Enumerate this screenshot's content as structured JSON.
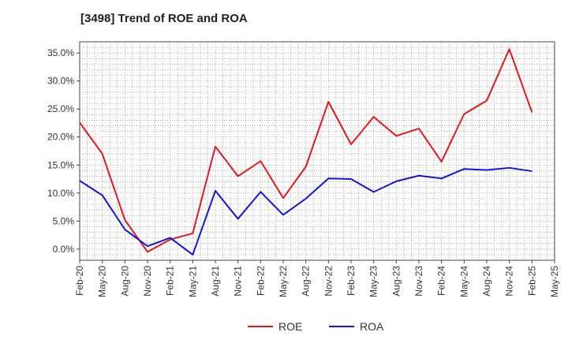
{
  "chart_data": {
    "type": "line",
    "title": "[3498]  Trend of ROE and ROA",
    "xlabel": "",
    "ylabel": "",
    "ylim": [
      -2.0,
      37.0
    ],
    "y_ticks": [
      "0.0%",
      "5.0%",
      "10.0%",
      "15.0%",
      "20.0%",
      "25.0%",
      "30.0%",
      "35.0%"
    ],
    "y_tick_values": [
      0,
      5,
      10,
      15,
      20,
      25,
      30,
      35
    ],
    "x_ticks": [
      "Feb-20",
      "May-20",
      "Aug-20",
      "Nov-20",
      "Feb-21",
      "May-21",
      "Aug-21",
      "Nov-21",
      "Feb-22",
      "May-22",
      "Aug-22",
      "Nov-22",
      "Feb-23",
      "May-23",
      "Aug-23",
      "Nov-23",
      "Feb-24",
      "May-24",
      "Aug-24",
      "Nov-24",
      "Feb-25",
      "May-25"
    ],
    "grid": true,
    "legend_position": "bottom-center",
    "series": [
      {
        "name": "ROE",
        "color": "#e8171b",
        "x": [
          "Feb-20",
          "May-20",
          "Aug-20",
          "Nov-20",
          "Feb-21",
          "May-21",
          "Aug-21",
          "Nov-21",
          "Feb-22",
          "May-22",
          "Aug-22",
          "Nov-22",
          "Feb-23",
          "May-23",
          "Aug-23",
          "Nov-23",
          "Feb-24",
          "May-24",
          "Aug-24",
          "Nov-24",
          "Feb-25"
        ],
        "values": [
          22.6,
          17.0,
          5.2,
          -0.5,
          1.7,
          2.8,
          18.3,
          13.0,
          15.7,
          9.1,
          14.7,
          26.3,
          18.7,
          23.6,
          20.2,
          21.5,
          15.6,
          24.1,
          26.5,
          35.7,
          24.4
        ]
      },
      {
        "name": "ROA",
        "color": "#1414e0",
        "x": [
          "Feb-20",
          "May-20",
          "Aug-20",
          "Nov-20",
          "Feb-21",
          "May-21",
          "Aug-21",
          "Nov-21",
          "Feb-22",
          "May-22",
          "Aug-22",
          "Nov-22",
          "Feb-23",
          "May-23",
          "Aug-23",
          "Nov-23",
          "Feb-24",
          "May-24",
          "Aug-24",
          "Nov-24",
          "Feb-25"
        ],
        "values": [
          12.2,
          9.6,
          3.5,
          0.5,
          2.0,
          -1.0,
          10.4,
          5.4,
          10.2,
          6.1,
          9.0,
          12.6,
          12.5,
          10.2,
          12.1,
          13.1,
          12.6,
          14.3,
          14.1,
          14.5,
          13.9
        ]
      }
    ]
  },
  "legend": {
    "roe_label": "ROE",
    "roa_label": "ROA"
  }
}
